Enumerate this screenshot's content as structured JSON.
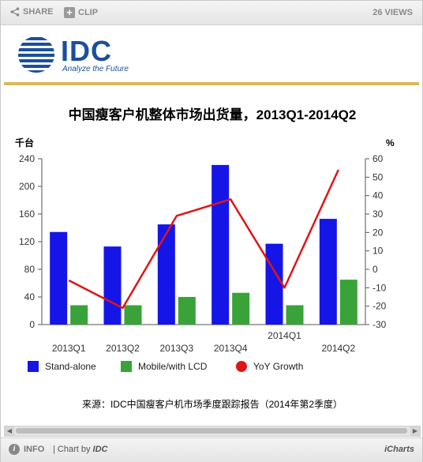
{
  "toolbar": {
    "share_label": "SHARE",
    "clip_label": "CLIP",
    "views_label": "26 VIEWS"
  },
  "logo": {
    "name": "IDC",
    "tagline": "Analyze the Future",
    "color": "#1b4f9c"
  },
  "chart_data": {
    "type": "bar",
    "title": "中国瘦客户机整体市场出货量，2013Q1-2014Q2",
    "categories": [
      "2013Q1",
      "2013Q2",
      "2013Q3",
      "2013Q4",
      "2014Q1",
      "2014Q2"
    ],
    "series": [
      {
        "name": "Stand-alone",
        "type": "bar",
        "color": "#1515e8",
        "values": [
          134,
          113,
          145,
          231,
          117,
          153
        ]
      },
      {
        "name": "Mobile/with LCD",
        "type": "bar",
        "color": "#39a339",
        "values": [
          28,
          28,
          40,
          46,
          28,
          65
        ]
      },
      {
        "name": "YoY Growth",
        "type": "line",
        "axis": "right",
        "color": "#e01515",
        "values": [
          -6,
          -21,
          29,
          38,
          -10,
          54
        ]
      }
    ],
    "y_left": {
      "label": "千台",
      "min": 0,
      "max": 240,
      "ticks": [
        0,
        40,
        80,
        120,
        160,
        200,
        240
      ]
    },
    "y_right": {
      "label": "%",
      "min": -30,
      "max": 60,
      "ticks": [
        -30,
        -20,
        -10,
        0,
        10,
        20,
        30,
        40,
        50,
        60
      ]
    },
    "grid": false,
    "legend": "bottom"
  },
  "source_note": "来源：IDC中国瘦客户机市场季度跟踪报告（2014年第2季度）",
  "footer": {
    "info_label": "INFO",
    "chartby_prefix": "| Chart by ",
    "chartby_brand": "IDC",
    "brand_label": "iCharts"
  }
}
